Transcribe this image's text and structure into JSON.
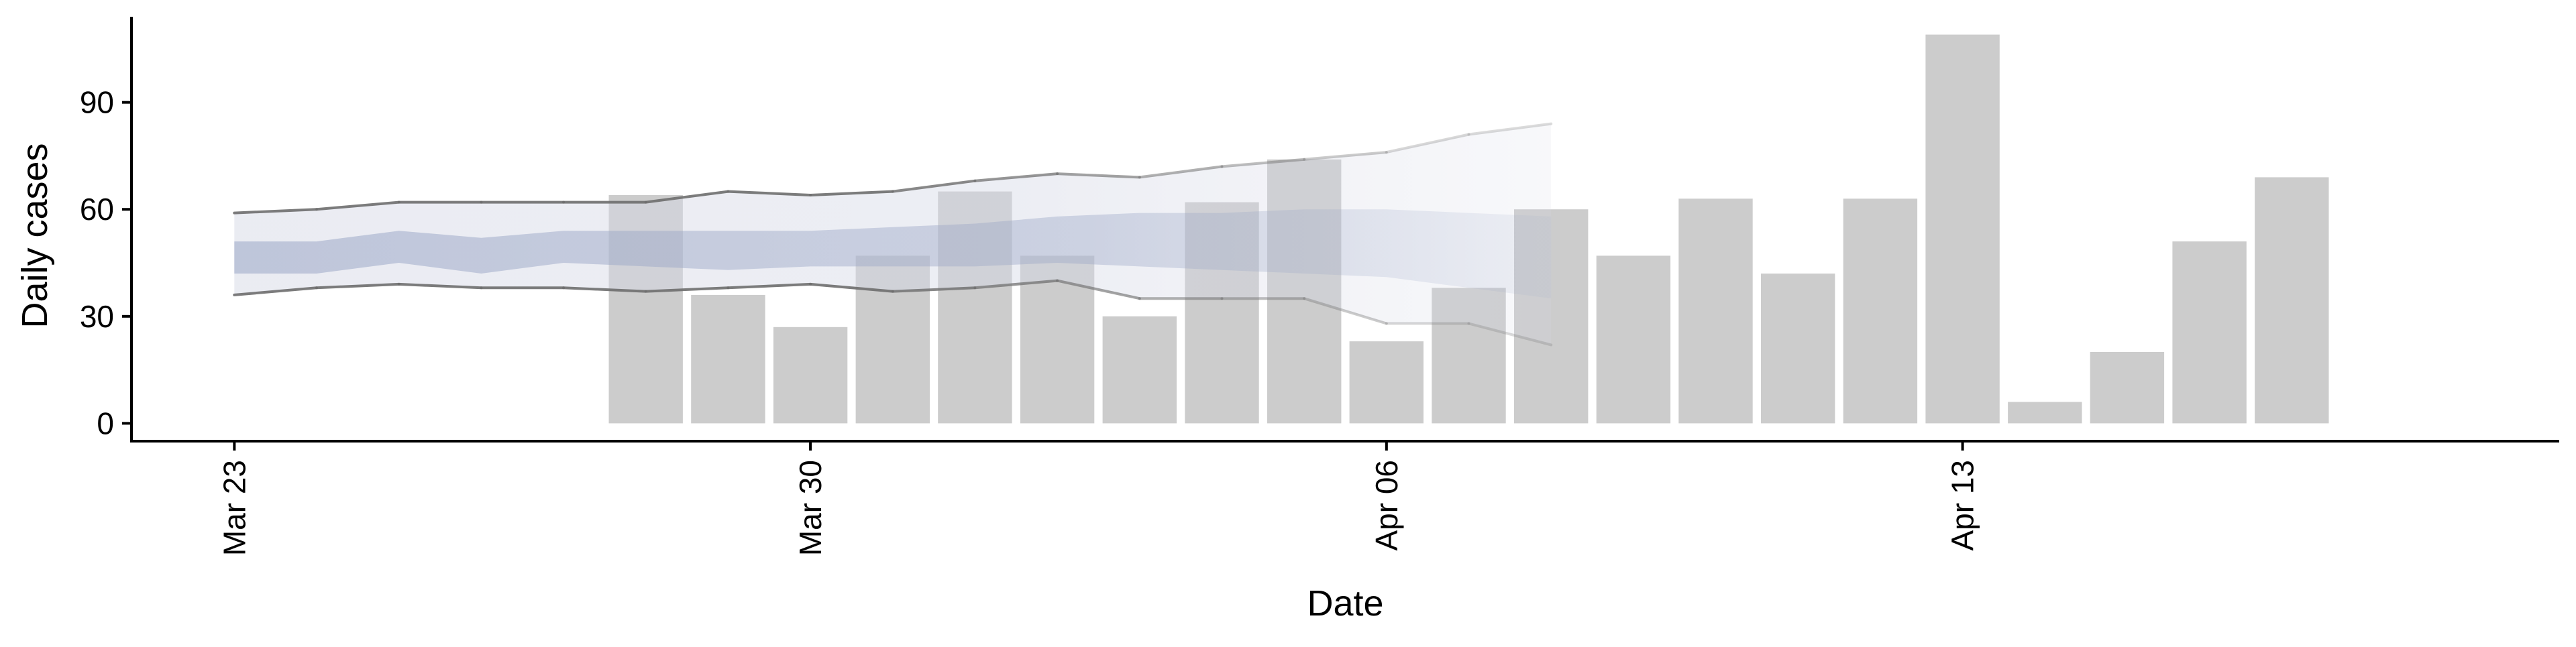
{
  "chart_data": {
    "type": "bar",
    "xlabel": "Date",
    "ylabel": "Daily cases",
    "x_ticks": [
      {
        "date": "2020-03-23",
        "label": "Mar 23"
      },
      {
        "date": "2020-03-30",
        "label": "Mar 30"
      },
      {
        "date": "2020-04-06",
        "label": "Apr 06"
      },
      {
        "date": "2020-04-13",
        "label": "Apr 13"
      }
    ],
    "xlim": [
      "2020-03-21.75",
      "2020-04-20.25"
    ],
    "y_ticks": [
      0,
      30,
      60,
      90
    ],
    "ylim": [
      -5,
      114
    ],
    "grid": false,
    "legend": "none",
    "colors": {
      "bars": "#cccccc",
      "band_outer": "#d6d9e6",
      "band_inner": "#aab4cf",
      "line": "#6e6e6e",
      "axis": "#000000"
    },
    "bars": {
      "name": "",
      "x": [
        "2020-03-28",
        "2020-03-29",
        "2020-03-30",
        "2020-03-31",
        "2020-04-01",
        "2020-04-02",
        "2020-04-03",
        "2020-04-04",
        "2020-04-05",
        "2020-04-06",
        "2020-04-07",
        "2020-04-08",
        "2020-04-09",
        "2020-04-10",
        "2020-04-11",
        "2020-04-12",
        "2020-04-13",
        "2020-04-14",
        "2020-04-15",
        "2020-04-16",
        "2020-04-17"
      ],
      "values": [
        64,
        36,
        27,
        47,
        65,
        47,
        30,
        62,
        74,
        23,
        38,
        60,
        47,
        63,
        42,
        63,
        109,
        6,
        20,
        51,
        69
      ]
    },
    "estimate": {
      "x": [
        "2020-03-23",
        "2020-03-24",
        "2020-03-25",
        "2020-03-26",
        "2020-03-27",
        "2020-03-28",
        "2020-03-29",
        "2020-03-30",
        "2020-03-31",
        "2020-04-01",
        "2020-04-02",
        "2020-04-03",
        "2020-04-04",
        "2020-04-05",
        "2020-04-06",
        "2020-04-07",
        "2020-04-08"
      ],
      "upper_outer": [
        59,
        60,
        62,
        62,
        62,
        62,
        65,
        64,
        65,
        68,
        70,
        69,
        72,
        74,
        76,
        81,
        84
      ],
      "upper_inner": [
        51,
        51,
        54,
        52,
        54,
        54,
        54,
        54,
        55,
        56,
        58,
        59,
        59,
        60,
        60,
        59,
        58
      ],
      "lower_inner": [
        42,
        42,
        45,
        42,
        45,
        44,
        43,
        44,
        44,
        44,
        45,
        44,
        43,
        42,
        41,
        38,
        35
      ],
      "lower_outer": [
        36,
        38,
        39,
        38,
        38,
        37,
        38,
        39,
        37,
        38,
        40,
        35,
        35,
        35,
        28,
        28,
        22
      ]
    }
  }
}
